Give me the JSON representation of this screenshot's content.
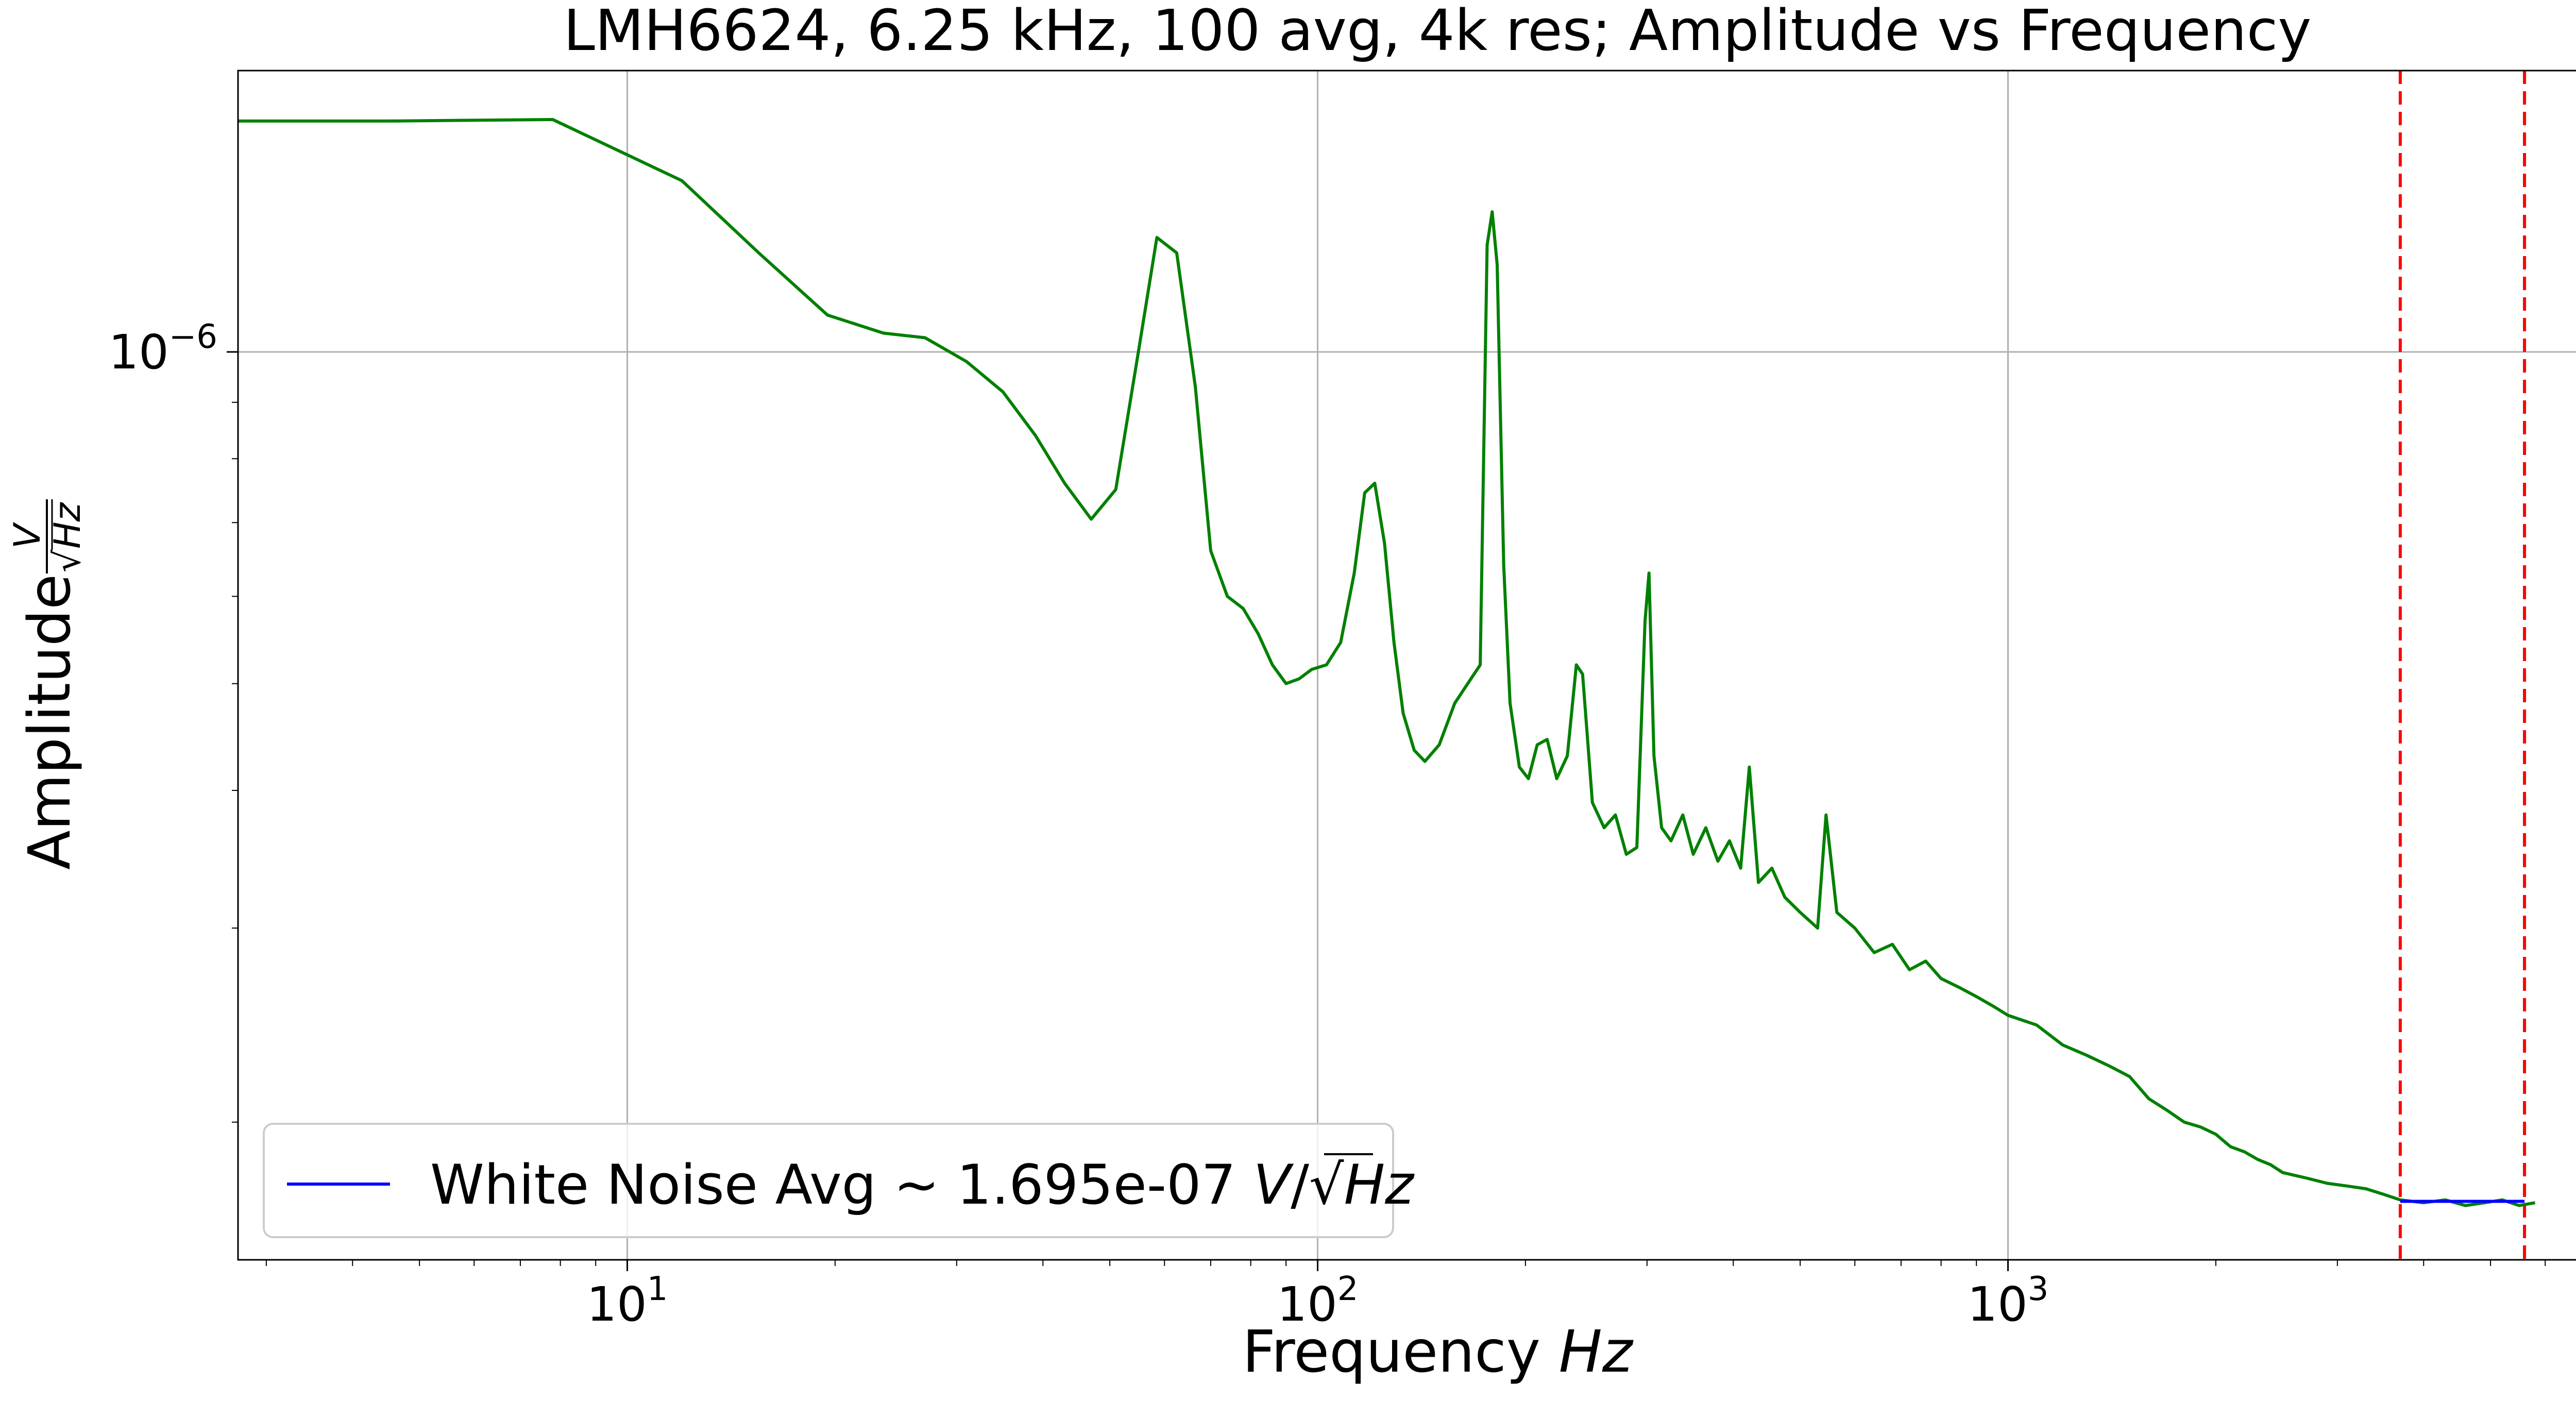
{
  "chart_data": {
    "type": "line",
    "title": "LMH6624, 6.25 kHz, 100 avg, 4k res; Amplitude vs Frequency",
    "xlabel_text": "Frequency ",
    "xlabel_unit": "Hz",
    "ylabel_text": "Amplitude ",
    "ylabel_unit_num": "V",
    "ylabel_unit_den": "Hz",
    "xscale": "log",
    "yscale": "log",
    "xlim": [
      2.73,
      8200
    ],
    "ylim": [
      1.5e-07,
      1.8e-06
    ],
    "grid": true,
    "legend_position": "lower-left",
    "x_ticks": [
      {
        "value": 10,
        "base": "10",
        "exp": "1"
      },
      {
        "value": 100,
        "base": "10",
        "exp": "2"
      },
      {
        "value": 1000,
        "base": "10",
        "exp": "3"
      }
    ],
    "y_ticks": [
      {
        "value": 1e-06,
        "base": "10",
        "exp": "−6"
      }
    ],
    "series": [
      {
        "color": "#008000",
        "points": [
          [
            2.73,
            1.62e-06
          ],
          [
            4.5,
            1.62e-06
          ],
          [
            7.8,
            1.625e-06
          ],
          [
            12.0,
            1.43e-06
          ],
          [
            15.5,
            1.23e-06
          ],
          [
            19.5,
            1.08e-06
          ],
          [
            23.5,
            1.04e-06
          ],
          [
            27.0,
            1.03e-06
          ],
          [
            31.0,
            9.8e-07
          ],
          [
            35.0,
            9.2e-07
          ],
          [
            39.0,
            8.4e-07
          ],
          [
            43.0,
            7.6e-07
          ],
          [
            47.0,
            7.05e-07
          ],
          [
            51.0,
            7.5e-07
          ],
          [
            55.0,
            1e-06
          ],
          [
            58.5,
            1.27e-06
          ],
          [
            62.5,
            1.23e-06
          ],
          [
            66.5,
            9.3e-07
          ],
          [
            70.0,
            6.6e-07
          ],
          [
            74.0,
            6e-07
          ],
          [
            78.0,
            5.85e-07
          ],
          [
            82.0,
            5.55e-07
          ],
          [
            86.0,
            5.2e-07
          ],
          [
            90.0,
            5e-07
          ],
          [
            94.0,
            5.05e-07
          ],
          [
            98.0,
            5.15e-07
          ],
          [
            103.0,
            5.2e-07
          ],
          [
            108.0,
            5.45e-07
          ],
          [
            113.0,
            6.3e-07
          ],
          [
            117.0,
            7.45e-07
          ],
          [
            121.0,
            7.6e-07
          ],
          [
            125.0,
            6.7e-07
          ],
          [
            129.0,
            5.45e-07
          ],
          [
            133.0,
            4.7e-07
          ],
          [
            138.0,
            4.35e-07
          ],
          [
            143.0,
            4.25e-07
          ],
          [
            150.0,
            4.4e-07
          ],
          [
            158.0,
            4.8e-07
          ],
          [
            165.0,
            5e-07
          ],
          [
            172.0,
            5.2e-07
          ],
          [
            176.0,
            1.25e-06
          ],
          [
            179.0,
            1.34e-06
          ],
          [
            182.0,
            1.2e-06
          ],
          [
            186.0,
            6.4e-07
          ],
          [
            190.0,
            4.8e-07
          ],
          [
            196.0,
            4.2e-07
          ],
          [
            202.0,
            4.1e-07
          ],
          [
            208.0,
            4.4e-07
          ],
          [
            215.0,
            4.45e-07
          ],
          [
            222.0,
            4.1e-07
          ],
          [
            230.0,
            4.3e-07
          ],
          [
            237.0,
            5.2e-07
          ],
          [
            242.0,
            5.1e-07
          ],
          [
            250.0,
            3.9e-07
          ],
          [
            260.0,
            3.7e-07
          ],
          [
            270.0,
            3.8e-07
          ],
          [
            280.0,
            3.5e-07
          ],
          [
            290.0,
            3.55e-07
          ],
          [
            298.0,
            5.7e-07
          ],
          [
            302.0,
            6.3e-07
          ],
          [
            307.0,
            4.3e-07
          ],
          [
            315.0,
            3.7e-07
          ],
          [
            325.0,
            3.6e-07
          ],
          [
            338.0,
            3.8e-07
          ],
          [
            350.0,
            3.5e-07
          ],
          [
            365.0,
            3.7e-07
          ],
          [
            380.0,
            3.45e-07
          ],
          [
            395.0,
            3.6e-07
          ],
          [
            410.0,
            3.4e-07
          ],
          [
            422.0,
            4.2e-07
          ],
          [
            435.0,
            3.3e-07
          ],
          [
            455.0,
            3.4e-07
          ],
          [
            475.0,
            3.2e-07
          ],
          [
            500.0,
            3.1e-07
          ],
          [
            530.0,
            3e-07
          ],
          [
            545.0,
            3.8e-07
          ],
          [
            565.0,
            3.1e-07
          ],
          [
            600.0,
            3e-07
          ],
          [
            640.0,
            2.85e-07
          ],
          [
            680.0,
            2.9e-07
          ],
          [
            720.0,
            2.75e-07
          ],
          [
            760.0,
            2.8e-07
          ],
          [
            800.0,
            2.7e-07
          ],
          [
            850.0,
            2.65e-07
          ],
          [
            900.0,
            2.6e-07
          ],
          [
            950.0,
            2.55e-07
          ],
          [
            1000.0,
            2.5e-07
          ],
          [
            1100.0,
            2.45e-07
          ],
          [
            1200.0,
            2.35e-07
          ],
          [
            1300.0,
            2.3e-07
          ],
          [
            1400.0,
            2.25e-07
          ],
          [
            1500.0,
            2.2e-07
          ],
          [
            1600.0,
            2.1e-07
          ],
          [
            1700.0,
            2.05e-07
          ],
          [
            1800.0,
            2e-07
          ],
          [
            1900.0,
            1.98e-07
          ],
          [
            2000.0,
            1.95e-07
          ],
          [
            2100.0,
            1.9e-07
          ],
          [
            2200.0,
            1.88e-07
          ],
          [
            2300.0,
            1.85e-07
          ],
          [
            2400.0,
            1.83e-07
          ],
          [
            2500.0,
            1.8e-07
          ],
          [
            2700.0,
            1.78e-07
          ],
          [
            2900.0,
            1.76e-07
          ],
          [
            3100.0,
            1.75e-07
          ],
          [
            3300.0,
            1.74e-07
          ],
          [
            3500.0,
            1.72e-07
          ],
          [
            3700.0,
            1.7e-07
          ],
          [
            4000.0,
            1.69e-07
          ],
          [
            4300.0,
            1.7e-07
          ],
          [
            4600.0,
            1.68e-07
          ],
          [
            4900.0,
            1.69e-07
          ],
          [
            5200.0,
            1.7e-07
          ],
          [
            5500.0,
            1.68e-07
          ],
          [
            5800.0,
            1.69e-07
          ]
        ]
      }
    ],
    "noise_floor": {
      "legend_label": "White Noise Avg ~ 1.695e-07 ",
      "legend_unit_v": "V",
      "legend_unit_sep": "/",
      "legend_unit_hz": "Hz",
      "value": 1.695e-07,
      "x_range": [
        3700,
        5600
      ],
      "color": "#0000ff"
    },
    "markers": [
      {
        "x": 3700,
        "color": "#ff0000",
        "style": "dashed"
      },
      {
        "x": 5600,
        "color": "#ff0000",
        "style": "dashed"
      }
    ]
  }
}
